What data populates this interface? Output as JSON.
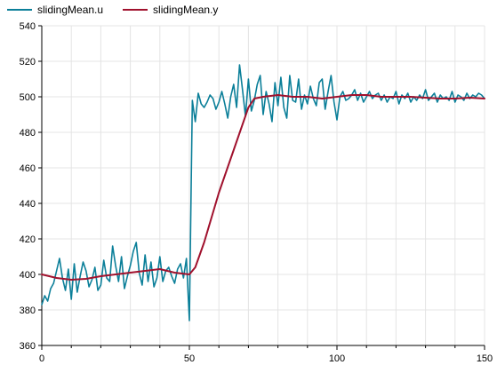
{
  "chart_data": {
    "type": "line",
    "title": "",
    "xlabel": "",
    "ylabel": "",
    "xlim": [
      0,
      150
    ],
    "ylim": [
      360,
      540
    ],
    "xticks": [
      0,
      50,
      100,
      150
    ],
    "yticks": [
      360,
      380,
      400,
      420,
      440,
      460,
      480,
      500,
      520,
      540
    ],
    "grid": true,
    "legend": "top-left",
    "series": [
      {
        "name": "slidingMean.u",
        "color": "#0b7f99",
        "x": [
          0,
          1,
          2,
          3,
          4,
          5,
          6,
          7,
          8,
          9,
          10,
          11,
          12,
          13,
          14,
          15,
          16,
          17,
          18,
          19,
          20,
          21,
          22,
          23,
          24,
          25,
          26,
          27,
          28,
          29,
          30,
          31,
          32,
          33,
          34,
          35,
          36,
          37,
          38,
          39,
          40,
          41,
          42,
          43,
          44,
          45,
          46,
          47,
          48,
          49,
          50,
          51,
          52,
          53,
          54,
          55,
          56,
          57,
          58,
          59,
          60,
          61,
          62,
          63,
          64,
          65,
          66,
          67,
          68,
          69,
          70,
          71,
          72,
          73,
          74,
          75,
          76,
          77,
          78,
          79,
          80,
          81,
          82,
          83,
          84,
          85,
          86,
          87,
          88,
          89,
          90,
          91,
          92,
          93,
          94,
          95,
          96,
          97,
          98,
          99,
          100,
          101,
          102,
          103,
          104,
          105,
          106,
          107,
          108,
          109,
          110,
          111,
          112,
          113,
          114,
          115,
          116,
          117,
          118,
          119,
          120,
          121,
          122,
          123,
          124,
          125,
          126,
          127,
          128,
          129,
          130,
          131,
          132,
          133,
          134,
          135,
          136,
          137,
          138,
          139,
          140,
          141,
          142,
          143,
          144,
          145,
          146,
          147,
          148,
          149,
          150
        ],
        "y": [
          383,
          388,
          385,
          392,
          395,
          402,
          409,
          398,
          391,
          403,
          386,
          406,
          390,
          399,
          407,
          402,
          393,
          397,
          404,
          391,
          394,
          408,
          398,
          396,
          416,
          405,
          396,
          410,
          392,
          399,
          405,
          413,
          418,
          401,
          394,
          411,
          396,
          407,
          393,
          398,
          410,
          396,
          402,
          404,
          399,
          395,
          403,
          406,
          398,
          409,
          374,
          498,
          486,
          502,
          496,
          494,
          497,
          501,
          499,
          493,
          497,
          503,
          496,
          488,
          500,
          507,
          494,
          518,
          504,
          489,
          510,
          492,
          498,
          507,
          512,
          490,
          503,
          496,
          486,
          508,
          495,
          511,
          494,
          488,
          512,
          498,
          497,
          510,
          493,
          501,
          496,
          506,
          499,
          495,
          508,
          510,
          493,
          503,
          512,
          497,
          487,
          500,
          503,
          498,
          499,
          501,
          504,
          498,
          502,
          497,
          500,
          503,
          499,
          501,
          502,
          498,
          501,
          497,
          500,
          499,
          503,
          496,
          501,
          499,
          502,
          497,
          500,
          498,
          501,
          499,
          504,
          498,
          500,
          502,
          497,
          501,
          499,
          500,
          498,
          503,
          497,
          501,
          500,
          498,
          502,
          499,
          501,
          500,
          502,
          501,
          499
        ]
      },
      {
        "name": "slidingMean.y",
        "color": "#a0112d",
        "x": [
          0,
          5,
          10,
          15,
          20,
          25,
          30,
          35,
          40,
          45,
          50,
          52,
          55,
          60,
          65,
          70,
          72,
          75,
          80,
          85,
          90,
          95,
          100,
          105,
          110,
          115,
          120,
          125,
          130,
          135,
          140,
          145,
          150
        ],
        "y": [
          400,
          398,
          397,
          397.5,
          399,
          400,
          401,
          402,
          403,
          401,
          400,
          404,
          418,
          446,
          470,
          494,
          499,
          500,
          501,
          500,
          500,
          499,
          500,
          501,
          501,
          500,
          500,
          500,
          499.5,
          499,
          499,
          499.5,
          499
        ]
      }
    ]
  }
}
